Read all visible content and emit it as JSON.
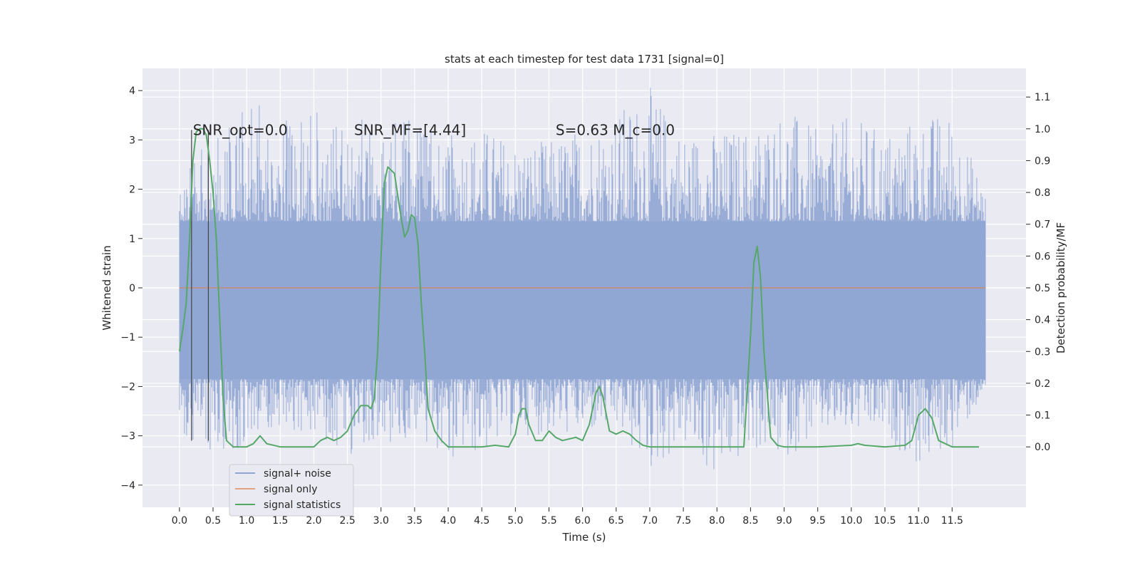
{
  "chart_data": {
    "type": "line",
    "title": "stats at each timestep for test data 1731 [signal=0]",
    "xlabel": "Time (s)",
    "ylabel": "Whitened strain",
    "y2label": "Detection probability/MF",
    "xlim": [
      -0.55,
      12.6
    ],
    "ylim": [
      -4.45,
      4.45
    ],
    "y2lim": [
      -0.19,
      1.19
    ],
    "xticks": [
      0.0,
      0.5,
      1.0,
      1.5,
      2.0,
      2.5,
      3.0,
      3.5,
      4.0,
      4.5,
      5.0,
      5.5,
      6.0,
      6.5,
      7.0,
      7.5,
      8.0,
      8.5,
      9.0,
      9.5,
      10.0,
      10.5,
      11.0,
      11.5
    ],
    "xtick_labels": [
      "0.0",
      "0.5",
      "1.0",
      "1.5",
      "2.0",
      "2.5",
      "3.0",
      "3.5",
      "4.0",
      "4.5",
      "5.0",
      "5.5",
      "6.0",
      "6.5",
      "7.0",
      "7.5",
      "8.0",
      "8.5",
      "9.0",
      "9.5",
      "10.0",
      "10.5",
      "11.0",
      "11.5"
    ],
    "yticks": [
      -4,
      -3,
      -2,
      -1,
      0,
      1,
      2,
      3,
      4
    ],
    "ytick_labels": [
      "−4",
      "−3",
      "−2",
      "−1",
      "0",
      "1",
      "2",
      "3",
      "4"
    ],
    "y2ticks": [
      0.0,
      0.1,
      0.2,
      0.3,
      0.4,
      0.5,
      0.6,
      0.7,
      0.8,
      0.9,
      1.0,
      1.1
    ],
    "y2tick_labels": [
      "0.0",
      "0.1",
      "0.2",
      "0.3",
      "0.4",
      "0.5",
      "0.6",
      "0.7",
      "0.8",
      "0.9",
      "1.0",
      "1.1"
    ],
    "grid": true,
    "legend_position": "lower-left",
    "annotations": [
      {
        "id": "snr-opt",
        "text": "SNR_opt=0.0",
        "x": 0.2,
        "y": 3.1
      },
      {
        "id": "snr-mf",
        "text": "SNR_MF=[4.44]",
        "x": 2.6,
        "y": 3.1
      },
      {
        "id": "s-mc",
        "text": "S=0.63   M_c=0.0",
        "x": 5.6,
        "y": 3.1
      }
    ],
    "vertical_markers": [
      {
        "x": 0.18,
        "y_range": [
          -3.1,
          3.2
        ]
      },
      {
        "x": 0.43,
        "y_range": [
          -3.1,
          3.2
        ]
      }
    ],
    "series": [
      {
        "name": "signal+ noise",
        "axis": "left",
        "color": "#8fa5d3",
        "render": "band",
        "x_range": [
          0.0,
          12.0
        ],
        "typical_band": [
          -1.85,
          1.35
        ],
        "extreme_range": [
          -4.0,
          4.1
        ],
        "x": [
          0.0,
          0.5,
          1.0,
          1.5,
          2.0,
          2.5,
          3.0,
          3.5,
          4.0,
          4.5,
          5.0,
          5.5,
          6.0,
          6.5,
          7.0,
          7.5,
          8.0,
          8.5,
          9.0,
          9.5,
          10.0,
          10.5,
          11.0,
          11.5,
          12.0
        ],
        "upper": [
          2.3,
          3.1,
          3.7,
          3.7,
          3.6,
          3.6,
          3.3,
          3.5,
          3.1,
          3.3,
          3.0,
          3.0,
          3.3,
          3.6,
          4.1,
          3.2,
          3.2,
          3.3,
          3.7,
          3.2,
          3.5,
          3.2,
          3.5,
          3.6,
          2.0
        ],
        "lower": [
          -2.9,
          -3.4,
          -3.2,
          -2.8,
          -3.0,
          -3.4,
          -3.2,
          -3.0,
          -3.5,
          -3.4,
          -3.0,
          -3.0,
          -3.0,
          -2.9,
          -3.8,
          -3.2,
          -4.0,
          -3.3,
          -3.5,
          -3.0,
          -3.0,
          -3.0,
          -3.7,
          -3.3,
          -2.1
        ]
      },
      {
        "name": "signal only",
        "axis": "left",
        "color": "#dd8452",
        "x": [
          0.0,
          12.0
        ],
        "values": [
          0.0,
          0.0
        ]
      },
      {
        "name": "signal statistics",
        "axis": "right",
        "color": "#55a868",
        "x": [
          0.0,
          0.05,
          0.1,
          0.15,
          0.2,
          0.25,
          0.3,
          0.35,
          0.4,
          0.45,
          0.5,
          0.55,
          0.6,
          0.65,
          0.7,
          0.8,
          0.9,
          1.0,
          1.1,
          1.2,
          1.3,
          1.5,
          2.0,
          2.1,
          2.2,
          2.3,
          2.4,
          2.5,
          2.6,
          2.7,
          2.8,
          2.85,
          2.9,
          2.95,
          3.0,
          3.05,
          3.1,
          3.2,
          3.3,
          3.35,
          3.4,
          3.45,
          3.5,
          3.55,
          3.6,
          3.65,
          3.7,
          3.8,
          3.9,
          4.0,
          4.5,
          4.7,
          4.9,
          5.0,
          5.05,
          5.1,
          5.15,
          5.2,
          5.3,
          5.4,
          5.5,
          5.6,
          5.7,
          5.9,
          6.0,
          6.1,
          6.2,
          6.25,
          6.3,
          6.4,
          6.5,
          6.6,
          6.7,
          6.8,
          6.9,
          7.0,
          7.5,
          8.0,
          8.4,
          8.5,
          8.55,
          8.6,
          8.65,
          8.7,
          8.8,
          8.9,
          9.0,
          9.5,
          10.0,
          10.1,
          10.2,
          10.5,
          10.8,
          10.9,
          11.0,
          11.1,
          11.2,
          11.3,
          11.5,
          11.9
        ],
        "values": [
          0.3,
          0.37,
          0.45,
          0.65,
          0.9,
          0.99,
          1.0,
          1.0,
          0.98,
          0.9,
          0.8,
          0.65,
          0.4,
          0.15,
          0.02,
          0.0,
          0.0,
          0.0,
          0.01,
          0.035,
          0.01,
          0.0,
          0.0,
          0.02,
          0.03,
          0.02,
          0.03,
          0.05,
          0.1,
          0.13,
          0.13,
          0.12,
          0.15,
          0.3,
          0.6,
          0.83,
          0.88,
          0.86,
          0.72,
          0.66,
          0.68,
          0.73,
          0.72,
          0.64,
          0.45,
          0.3,
          0.12,
          0.05,
          0.02,
          0.0,
          0.0,
          0.005,
          0.0,
          0.04,
          0.1,
          0.12,
          0.12,
          0.07,
          0.02,
          0.02,
          0.05,
          0.03,
          0.02,
          0.03,
          0.02,
          0.07,
          0.17,
          0.19,
          0.16,
          0.05,
          0.04,
          0.05,
          0.04,
          0.02,
          0.005,
          0.0,
          0.0,
          0.0,
          0.0,
          0.35,
          0.58,
          0.63,
          0.53,
          0.3,
          0.03,
          0.005,
          0.0,
          0.0,
          0.005,
          0.01,
          0.005,
          0.0,
          0.005,
          0.02,
          0.1,
          0.12,
          0.09,
          0.02,
          0.0,
          0.0
        ]
      }
    ]
  }
}
